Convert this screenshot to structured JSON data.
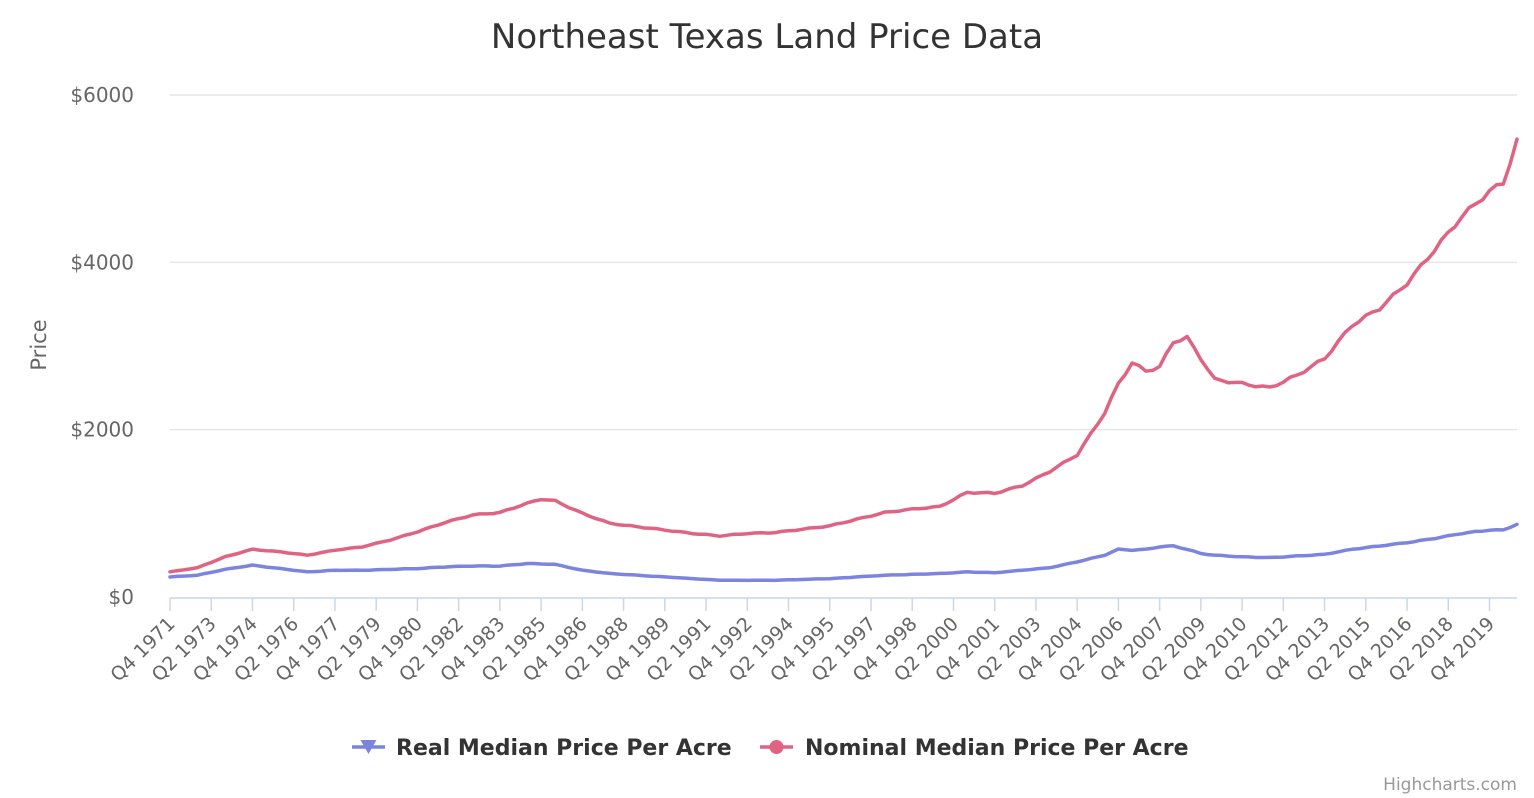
{
  "chart_data": {
    "type": "line",
    "title": "Northeast Texas Land Price Data",
    "xlabel": "",
    "ylabel": "Price",
    "ylim": [
      0,
      6000
    ],
    "yticks": [
      0,
      2000,
      4000,
      6000
    ],
    "ytick_labels": [
      "$0",
      "$2000",
      "$4000",
      "$6000"
    ],
    "grid": true,
    "legend_position": "bottom",
    "credits": "Highcharts.com",
    "x_labels": [
      "Q4 1971",
      "Q2 1973",
      "Q4 1974",
      "Q2 1976",
      "Q4 1977",
      "Q2 1979",
      "Q4 1980",
      "Q2 1982",
      "Q4 1983",
      "Q2 1985",
      "Q4 1986",
      "Q2 1988",
      "Q4 1989",
      "Q2 1991",
      "Q4 1992",
      "Q2 1994",
      "Q4 1995",
      "Q2 1997",
      "Q4 1998",
      "Q2 2000",
      "Q4 2001",
      "Q2 2003",
      "Q4 2004",
      "Q2 2006",
      "Q4 2007",
      "Q2 2009",
      "Q4 2010",
      "Q2 2012",
      "Q4 2013",
      "Q2 2015",
      "Q4 2016",
      "Q2 2018",
      "Q4 2019"
    ],
    "x_start": "Q4 1971",
    "x_end": "Q4 2020",
    "series": [
      {
        "name": "Real Median Price Per Acre",
        "color": "#7c84e0",
        "marker": "triangle-down",
        "keypoints": [
          [
            "Q4 1971",
            240
          ],
          [
            "Q4 1972",
            260
          ],
          [
            "Q4 1973",
            330
          ],
          [
            "Q4 1974",
            380
          ],
          [
            "Q4 1975",
            340
          ],
          [
            "Q4 1976",
            300
          ],
          [
            "Q4 1977",
            320
          ],
          [
            "Q4 1978",
            320
          ],
          [
            "Q4 1979",
            330
          ],
          [
            "Q4 1980",
            340
          ],
          [
            "Q4 1981",
            360
          ],
          [
            "Q4 1982",
            370
          ],
          [
            "Q4 1983",
            370
          ],
          [
            "Q4 1984",
            400
          ],
          [
            "Q4 1985",
            390
          ],
          [
            "Q4 1986",
            320
          ],
          [
            "Q4 1987",
            280
          ],
          [
            "Q4 1988",
            260
          ],
          [
            "Q4 1989",
            240
          ],
          [
            "Q4 1990",
            220
          ],
          [
            "Q4 1991",
            200
          ],
          [
            "Q4 1992",
            200
          ],
          [
            "Q4 1993",
            200
          ],
          [
            "Q4 1994",
            210
          ],
          [
            "Q4 1995",
            220
          ],
          [
            "Q4 1996",
            240
          ],
          [
            "Q4 1997",
            260
          ],
          [
            "Q4 1998",
            270
          ],
          [
            "Q4 1999",
            280
          ],
          [
            "Q4 2000",
            300
          ],
          [
            "Q4 2001",
            290
          ],
          [
            "Q4 2002",
            320
          ],
          [
            "Q4 2003",
            350
          ],
          [
            "Q4 2004",
            420
          ],
          [
            "Q4 2005",
            500
          ],
          [
            "Q2 2006",
            570
          ],
          [
            "Q4 2006",
            560
          ],
          [
            "Q2 2007",
            570
          ],
          [
            "Q4 2007",
            600
          ],
          [
            "Q2 2008",
            610
          ],
          [
            "Q4 2008",
            570
          ],
          [
            "Q2 2009",
            520
          ],
          [
            "Q4 2009",
            500
          ],
          [
            "Q4 2010",
            480
          ],
          [
            "Q4 2011",
            470
          ],
          [
            "Q4 2012",
            490
          ],
          [
            "Q4 2013",
            510
          ],
          [
            "Q4 2014",
            570
          ],
          [
            "Q4 2015",
            610
          ],
          [
            "Q4 2016",
            650
          ],
          [
            "Q4 2017",
            700
          ],
          [
            "Q4 2018",
            760
          ],
          [
            "Q4 2019",
            800
          ],
          [
            "Q2 2020",
            800
          ],
          [
            "Q4 2020",
            870
          ]
        ]
      },
      {
        "name": "Nominal Median Price Per Acre",
        "color": "#e06384",
        "marker": "circle",
        "keypoints": [
          [
            "Q4 1971",
            300
          ],
          [
            "Q4 1972",
            350
          ],
          [
            "Q4 1973",
            480
          ],
          [
            "Q4 1974",
            570
          ],
          [
            "Q4 1975",
            540
          ],
          [
            "Q4 1976",
            500
          ],
          [
            "Q4 1977",
            560
          ],
          [
            "Q4 1978",
            600
          ],
          [
            "Q4 1979",
            680
          ],
          [
            "Q4 1980",
            780
          ],
          [
            "Q4 1981",
            890
          ],
          [
            "Q4 1982",
            980
          ],
          [
            "Q4 1983",
            1010
          ],
          [
            "Q4 1984",
            1120
          ],
          [
            "Q2 1985",
            1170
          ],
          [
            "Q4 1985",
            1150
          ],
          [
            "Q4 1986",
            1000
          ],
          [
            "Q4 1987",
            880
          ],
          [
            "Q4 1988",
            840
          ],
          [
            "Q4 1989",
            800
          ],
          [
            "Q4 1990",
            760
          ],
          [
            "Q4 1991",
            730
          ],
          [
            "Q4 1992",
            760
          ],
          [
            "Q4 1993",
            770
          ],
          [
            "Q4 1994",
            810
          ],
          [
            "Q4 1995",
            850
          ],
          [
            "Q4 1996",
            930
          ],
          [
            "Q4 1997",
            1010
          ],
          [
            "Q4 1998",
            1050
          ],
          [
            "Q4 1999",
            1080
          ],
          [
            "Q4 2000",
            1250
          ],
          [
            "Q4 2001",
            1240
          ],
          [
            "Q4 2002",
            1330
          ],
          [
            "Q4 2003",
            1500
          ],
          [
            "Q4 2004",
            1700
          ],
          [
            "Q4 2005",
            2200
          ],
          [
            "Q2 2006",
            2550
          ],
          [
            "Q4 2006",
            2800
          ],
          [
            "Q2 2007",
            2700
          ],
          [
            "Q4 2007",
            2750
          ],
          [
            "Q2 2008",
            3050
          ],
          [
            "Q4 2008",
            3100
          ],
          [
            "Q2 2009",
            2850
          ],
          [
            "Q4 2009",
            2600
          ],
          [
            "Q4 2010",
            2550
          ],
          [
            "Q4 2011",
            2500
          ],
          [
            "Q4 2012",
            2650
          ],
          [
            "Q4 2013",
            2850
          ],
          [
            "Q4 2014",
            3250
          ],
          [
            "Q4 2015",
            3450
          ],
          [
            "Q4 2016",
            3750
          ],
          [
            "Q4 2017",
            4150
          ],
          [
            "Q4 2018",
            4550
          ],
          [
            "Q4 2019",
            4850
          ],
          [
            "Q2 2020",
            4950
          ],
          [
            "Q4 2020",
            5450
          ]
        ]
      }
    ]
  }
}
